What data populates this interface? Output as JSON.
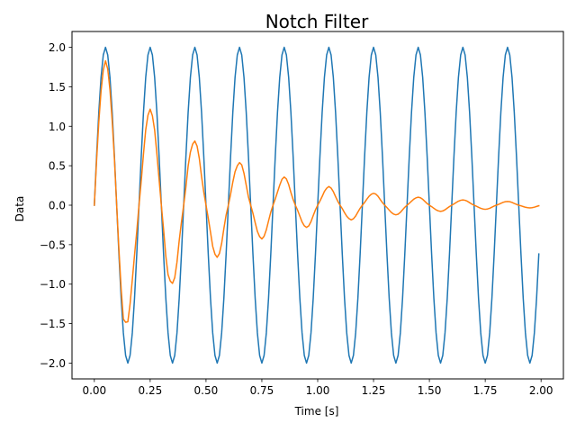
{
  "chart_data": {
    "type": "line",
    "title": "Notch Filter",
    "xlabel": "Time [s]",
    "ylabel": "Data",
    "xlim": [
      -0.1,
      2.1
    ],
    "ylim": [
      -2.2,
      2.2
    ],
    "xticks": [
      0.0,
      0.25,
      0.5,
      0.75,
      1.0,
      1.25,
      1.5,
      1.75,
      2.0
    ],
    "xtick_labels": [
      "0.00",
      "0.25",
      "0.50",
      "0.75",
      "1.00",
      "1.25",
      "1.50",
      "1.75",
      "2.00"
    ],
    "yticks": [
      -2.0,
      -1.5,
      -1.0,
      -0.5,
      0.0,
      0.5,
      1.0,
      1.5,
      2.0
    ],
    "ytick_labels": [
      "−2.0",
      "−1.5",
      "−1.0",
      "−0.5",
      "0.0",
      "0.5",
      "1.0",
      "1.5",
      "2.0"
    ],
    "grid": false,
    "legend": "none",
    "series": [
      {
        "color": "#1f77b4",
        "x": [
          0.0,
          0.01,
          0.02,
          0.03,
          0.04,
          0.05,
          0.06,
          0.07,
          0.08,
          0.09,
          0.1,
          0.11,
          0.12,
          0.13,
          0.14,
          0.15,
          0.16,
          0.17,
          0.18,
          0.19,
          0.2,
          0.21,
          0.22,
          0.23,
          0.24,
          0.25,
          0.26,
          0.27,
          0.28,
          0.29,
          0.3,
          0.31,
          0.32,
          0.33,
          0.34,
          0.35,
          0.36,
          0.37,
          0.38,
          0.39,
          0.4,
          0.41,
          0.42,
          0.43,
          0.44,
          0.45,
          0.46,
          0.47,
          0.48,
          0.49,
          0.5,
          0.51,
          0.52,
          0.53,
          0.54,
          0.55,
          0.56,
          0.57,
          0.58,
          0.59,
          0.6,
          0.61,
          0.62,
          0.63,
          0.64,
          0.65,
          0.66,
          0.67,
          0.68,
          0.69,
          0.7,
          0.71,
          0.72,
          0.73,
          0.74,
          0.75,
          0.76,
          0.77,
          0.78,
          0.79,
          0.8,
          0.81,
          0.82,
          0.83,
          0.84,
          0.85,
          0.86,
          0.87,
          0.88,
          0.89,
          0.9,
          0.91,
          0.92,
          0.93,
          0.94,
          0.95,
          0.96,
          0.97,
          0.98,
          0.99,
          1.0,
          1.01,
          1.02,
          1.03,
          1.04,
          1.05,
          1.06,
          1.07,
          1.08,
          1.09,
          1.1,
          1.11,
          1.12,
          1.13,
          1.14,
          1.15,
          1.16,
          1.17,
          1.18,
          1.19,
          1.2,
          1.21,
          1.22,
          1.23,
          1.24,
          1.25,
          1.26,
          1.27,
          1.28,
          1.29,
          1.3,
          1.31,
          1.32,
          1.33,
          1.34,
          1.35,
          1.36,
          1.37,
          1.38,
          1.39,
          1.4,
          1.41,
          1.42,
          1.43,
          1.44,
          1.45,
          1.46,
          1.47,
          1.48,
          1.49,
          1.5,
          1.51,
          1.52,
          1.53,
          1.54,
          1.55,
          1.56,
          1.57,
          1.58,
          1.59,
          1.6,
          1.61,
          1.62,
          1.63,
          1.64,
          1.65,
          1.66,
          1.67,
          1.68,
          1.69,
          1.7,
          1.71,
          1.72,
          1.73,
          1.74,
          1.75,
          1.76,
          1.77,
          1.78,
          1.79,
          1.8,
          1.81,
          1.82,
          1.83,
          1.84,
          1.85,
          1.86,
          1.87,
          1.88,
          1.89,
          1.9,
          1.91,
          1.92,
          1.93,
          1.94,
          1.95,
          1.96,
          1.97,
          1.98,
          1.99
        ],
        "y": [
          0.0,
          0.618,
          1.176,
          1.618,
          1.902,
          2.0,
          1.902,
          1.618,
          1.176,
          0.618,
          0.0,
          -0.618,
          -1.176,
          -1.618,
          -1.902,
          -2.0,
          -1.902,
          -1.618,
          -1.176,
          -0.618,
          0.0,
          0.618,
          1.176,
          1.618,
          1.902,
          2.0,
          1.902,
          1.618,
          1.176,
          0.618,
          0.0,
          -0.618,
          -1.176,
          -1.618,
          -1.902,
          -2.0,
          -1.902,
          -1.618,
          -1.176,
          -0.618,
          0.0,
          0.618,
          1.176,
          1.618,
          1.902,
          2.0,
          1.902,
          1.618,
          1.176,
          0.618,
          0.0,
          -0.618,
          -1.176,
          -1.618,
          -1.902,
          -2.0,
          -1.902,
          -1.618,
          -1.176,
          -0.618,
          0.0,
          0.618,
          1.176,
          1.618,
          1.902,
          2.0,
          1.902,
          1.618,
          1.176,
          0.618,
          0.0,
          -0.618,
          -1.176,
          -1.618,
          -1.902,
          -2.0,
          -1.902,
          -1.618,
          -1.176,
          -0.618,
          0.0,
          0.618,
          1.176,
          1.618,
          1.902,
          2.0,
          1.902,
          1.618,
          1.176,
          0.618,
          0.0,
          -0.618,
          -1.176,
          -1.618,
          -1.902,
          -2.0,
          -1.902,
          -1.618,
          -1.176,
          -0.618,
          0.0,
          0.618,
          1.176,
          1.618,
          1.902,
          2.0,
          1.902,
          1.618,
          1.176,
          0.618,
          0.0,
          -0.618,
          -1.176,
          -1.618,
          -1.902,
          -2.0,
          -1.902,
          -1.618,
          -1.176,
          -0.618,
          0.0,
          0.618,
          1.176,
          1.618,
          1.902,
          2.0,
          1.902,
          1.618,
          1.176,
          0.618,
          0.0,
          -0.618,
          -1.176,
          -1.618,
          -1.902,
          -2.0,
          -1.902,
          -1.618,
          -1.176,
          -0.618,
          0.0,
          0.618,
          1.176,
          1.618,
          1.902,
          2.0,
          1.902,
          1.618,
          1.176,
          0.618,
          0.0,
          -0.618,
          -1.176,
          -1.618,
          -1.902,
          -2.0,
          -1.902,
          -1.618,
          -1.176,
          -0.618,
          0.0,
          0.618,
          1.176,
          1.618,
          1.902,
          2.0,
          1.902,
          1.618,
          1.176,
          0.618,
          0.0,
          -0.618,
          -1.176,
          -1.618,
          -1.902,
          -2.0,
          -1.902,
          -1.618,
          -1.176,
          -0.618,
          0.0,
          0.618,
          1.176,
          1.618,
          1.902,
          2.0,
          1.902,
          1.618,
          1.176,
          0.618,
          0.0,
          -0.618,
          -1.176,
          -1.618,
          -1.902,
          -2.0,
          -1.902,
          -1.618,
          -1.176,
          -0.618
        ]
      },
      {
        "color": "#ff7f0e",
        "x": [
          0.0,
          0.01,
          0.02,
          0.03,
          0.04,
          0.05,
          0.06,
          0.07,
          0.08,
          0.09,
          0.1,
          0.11,
          0.12,
          0.13,
          0.14,
          0.15,
          0.16,
          0.17,
          0.18,
          0.19,
          0.2,
          0.21,
          0.22,
          0.23,
          0.24,
          0.25,
          0.26,
          0.27,
          0.28,
          0.29,
          0.3,
          0.31,
          0.32,
          0.33,
          0.34,
          0.35,
          0.36,
          0.37,
          0.38,
          0.39,
          0.4,
          0.41,
          0.42,
          0.43,
          0.44,
          0.45,
          0.46,
          0.47,
          0.48,
          0.49,
          0.5,
          0.51,
          0.52,
          0.53,
          0.54,
          0.55,
          0.56,
          0.57,
          0.58,
          0.59,
          0.6,
          0.61,
          0.62,
          0.63,
          0.64,
          0.65,
          0.66,
          0.67,
          0.68,
          0.69,
          0.7,
          0.71,
          0.72,
          0.73,
          0.74,
          0.75,
          0.76,
          0.77,
          0.78,
          0.79,
          0.8,
          0.81,
          0.82,
          0.83,
          0.84,
          0.85,
          0.86,
          0.87,
          0.88,
          0.89,
          0.9,
          0.91,
          0.92,
          0.93,
          0.94,
          0.95,
          0.96,
          0.97,
          0.98,
          0.99,
          1.0,
          1.01,
          1.02,
          1.03,
          1.04,
          1.05,
          1.06,
          1.07,
          1.08,
          1.09,
          1.1,
          1.11,
          1.12,
          1.13,
          1.14,
          1.15,
          1.16,
          1.17,
          1.18,
          1.19,
          1.2,
          1.21,
          1.22,
          1.23,
          1.24,
          1.25,
          1.26,
          1.27,
          1.28,
          1.29,
          1.3,
          1.31,
          1.32,
          1.33,
          1.34,
          1.35,
          1.36,
          1.37,
          1.38,
          1.39,
          1.4,
          1.41,
          1.42,
          1.43,
          1.44,
          1.45,
          1.46,
          1.47,
          1.48,
          1.49,
          1.5,
          1.51,
          1.52,
          1.53,
          1.54,
          1.55,
          1.56,
          1.57,
          1.58,
          1.59,
          1.6,
          1.61,
          1.62,
          1.63,
          1.64,
          1.65,
          1.66,
          1.67,
          1.68,
          1.69,
          1.7,
          1.71,
          1.72,
          1.73,
          1.74,
          1.75,
          1.76,
          1.77,
          1.78,
          1.79,
          1.8,
          1.81,
          1.82,
          1.83,
          1.84,
          1.85,
          1.86,
          1.87,
          1.88,
          1.89,
          1.9,
          1.91,
          1.92,
          1.93,
          1.94,
          1.95,
          1.96,
          1.97,
          1.98,
          1.99
        ],
        "y": [
          0.0,
          0.563,
          1.052,
          1.443,
          1.71,
          1.828,
          1.725,
          1.462,
          1.067,
          0.582,
          0.0,
          -0.558,
          -1.055,
          -1.442,
          -1.483,
          -1.476,
          -1.25,
          -0.945,
          -0.63,
          -0.332,
          0.0,
          0.307,
          0.647,
          0.953,
          1.139,
          1.216,
          1.132,
          0.951,
          0.65,
          0.325,
          0.0,
          -0.305,
          -0.643,
          -0.879,
          -0.961,
          -0.99,
          -0.917,
          -0.721,
          -0.447,
          -0.215,
          0.0,
          0.232,
          0.497,
          0.672,
          0.773,
          0.813,
          0.749,
          0.592,
          0.363,
          0.165,
          0.0,
          -0.162,
          -0.341,
          -0.522,
          -0.62,
          -0.66,
          -0.612,
          -0.484,
          -0.295,
          -0.124,
          0.0,
          0.138,
          0.293,
          0.424,
          0.499,
          0.54,
          0.51,
          0.404,
          0.254,
          0.103,
          0.0,
          -0.102,
          -0.22,
          -0.332,
          -0.398,
          -0.427,
          -0.393,
          -0.312,
          -0.198,
          -0.088,
          0.0,
          0.078,
          0.167,
          0.254,
          0.328,
          0.357,
          0.332,
          0.262,
          0.161,
          0.072,
          0.0,
          -0.064,
          -0.138,
          -0.212,
          -0.261,
          -0.281,
          -0.262,
          -0.208,
          -0.131,
          -0.059,
          0.0,
          0.052,
          0.111,
          0.174,
          0.214,
          0.237,
          0.217,
          0.172,
          0.109,
          0.049,
          0.0,
          -0.043,
          -0.094,
          -0.14,
          -0.17,
          -0.186,
          -0.172,
          -0.137,
          -0.087,
          -0.039,
          0.0,
          0.035,
          0.076,
          0.113,
          0.139,
          0.15,
          0.141,
          0.113,
          0.072,
          0.032,
          0.0,
          -0.03,
          -0.062,
          -0.093,
          -0.113,
          -0.122,
          -0.114,
          -0.091,
          -0.058,
          -0.026,
          0.0,
          0.024,
          0.051,
          0.076,
          0.093,
          0.101,
          0.094,
          0.075,
          0.048,
          0.021,
          0.0,
          -0.018,
          -0.039,
          -0.059,
          -0.072,
          -0.078,
          -0.073,
          -0.058,
          -0.037,
          -0.017,
          0.0,
          0.016,
          0.034,
          0.051,
          0.062,
          0.067,
          0.062,
          0.05,
          0.032,
          0.014,
          0.0,
          -0.012,
          -0.026,
          -0.039,
          -0.048,
          -0.052,
          -0.048,
          -0.039,
          -0.025,
          -0.011,
          0.0,
          0.011,
          0.024,
          0.036,
          0.044,
          0.047,
          0.044,
          0.035,
          0.022,
          0.01,
          0.0,
          -0.008,
          -0.017,
          -0.026,
          -0.031,
          -0.034,
          -0.031,
          -0.025,
          -0.016,
          -0.007
        ]
      }
    ]
  }
}
